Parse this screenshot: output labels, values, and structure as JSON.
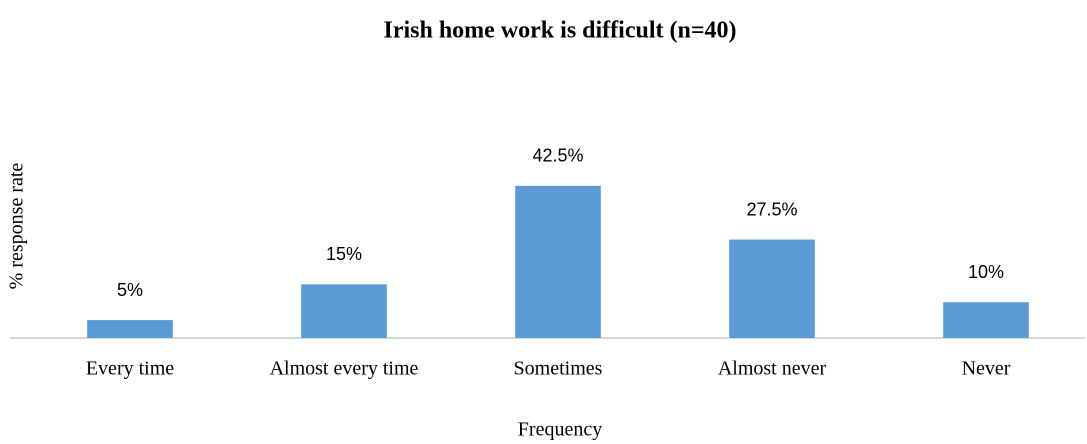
{
  "chart_data": {
    "type": "bar",
    "title": "Irish home work is difficult (n=40)",
    "x_label": "Frequency",
    "y_label": "% response rate",
    "categories": [
      "Every time",
      "Almost every time",
      "Sometimes",
      "Almost never",
      "Never"
    ],
    "values": [
      5,
      15,
      42.5,
      27.5,
      10
    ],
    "value_labels": [
      "5%",
      "15%",
      "42.5%",
      "27.5%",
      "10%"
    ],
    "color": "#5b9bd5",
    "ylim": [
      0,
      50
    ],
    "grid": false
  }
}
